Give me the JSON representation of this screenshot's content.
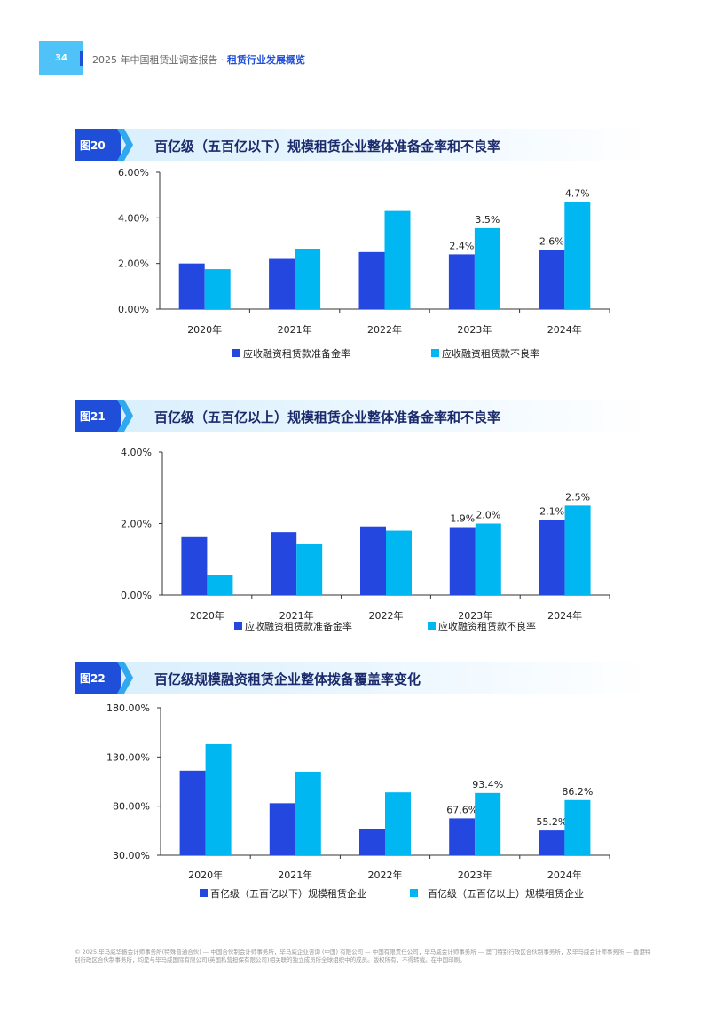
{
  "header": {
    "page_number": "34",
    "report": "2025 年中国租赁业调查报告 · ",
    "section": "租赁行业发展概览"
  },
  "figures": [
    {
      "tag": "图20",
      "title": "百亿级（五百亿以下）规模租赁企业整体准备金率和不良率"
    },
    {
      "tag": "图21",
      "title": "百亿级（五百亿以上）规模租赁企业整体准备金率和不良率"
    },
    {
      "tag": "图22",
      "title": "百亿级规模融资租赁企业整体拨备覆盖率变化"
    }
  ],
  "chart_data": [
    {
      "type": "bar",
      "categories": [
        "2020年",
        "2021年",
        "2022年",
        "2023年",
        "2024年"
      ],
      "series": [
        {
          "name": "应收融资租赁款准备金率",
          "color": "#2447e0",
          "values": [
            2.0,
            2.2,
            2.5,
            2.4,
            2.6
          ],
          "labels": [
            "",
            "",
            "",
            "2.4%",
            "2.6%"
          ]
        },
        {
          "name": "应收融资租赁款不良率",
          "color": "#00b7f1",
          "values": [
            1.75,
            2.65,
            4.3,
            3.55,
            4.7
          ],
          "labels": [
            "",
            "",
            "",
            "3.5%",
            "4.7%"
          ]
        }
      ],
      "yticks": [
        "0.00%",
        "2.00%",
        "4.00%",
        "6.00%"
      ],
      "ylim": [
        0,
        6
      ],
      "grid": false,
      "legend": "bottom"
    },
    {
      "type": "bar",
      "categories": [
        "2020年",
        "2021年",
        "2022年",
        "2023年",
        "2024年"
      ],
      "series": [
        {
          "name": "应收融资租赁款准备金率",
          "color": "#2447e0",
          "values": [
            1.62,
            1.76,
            1.92,
            1.9,
            2.1
          ],
          "labels": [
            "",
            "",
            "",
            "1.9%",
            "2.1%"
          ]
        },
        {
          "name": "应收融资租赁款不良率",
          "color": "#00b7f1",
          "values": [
            0.55,
            1.42,
            1.8,
            2.0,
            2.5
          ],
          "labels": [
            "",
            "",
            "",
            "2.0%",
            "2.5%"
          ]
        }
      ],
      "yticks": [
        "0.00%",
        "2.00%",
        "4.00%"
      ],
      "ylim": [
        0,
        4
      ],
      "grid": false,
      "legend": "bottom"
    },
    {
      "type": "bar",
      "categories": [
        "2020年",
        "2021年",
        "2022年",
        "2023年",
        "2024年"
      ],
      "series": [
        {
          "name": "百亿级（五百亿以下）规模租赁企业",
          "color": "#2447e0",
          "values": [
            116,
            83,
            57,
            67.6,
            55.2
          ],
          "labels": [
            "",
            "",
            "",
            "67.6%",
            "55.2%"
          ]
        },
        {
          "name": "百亿级（五百亿以上）规模租赁企业",
          "color": "#00b7f1",
          "values": [
            143,
            115,
            94,
            93.4,
            86.2
          ],
          "labels": [
            "",
            "",
            "",
            "93.4%",
            "86.2%"
          ]
        }
      ],
      "yticks": [
        "30.00%",
        "80.00%",
        "130.00%",
        "180.00%"
      ],
      "ylim": [
        30,
        180
      ],
      "grid": false,
      "legend": "bottom"
    }
  ],
  "footer": "© 2025 毕马威华振会计师事务所(特殊普通合伙) — 中国合伙制会计师事务所，毕马威企业咨询 (中国) 有限公司 — 中国有限责任公司，毕马威会计师事务所 — 澳门特别行政区合伙制事务所，及毕马威会计师事务所 — 香港特别行政区合伙制事务所，均是与毕马威国际有限公司(英国私营担保有限公司)相关联的独立成员所全球组织中的成员。版权所有，不得转载。在中国印刷。"
}
